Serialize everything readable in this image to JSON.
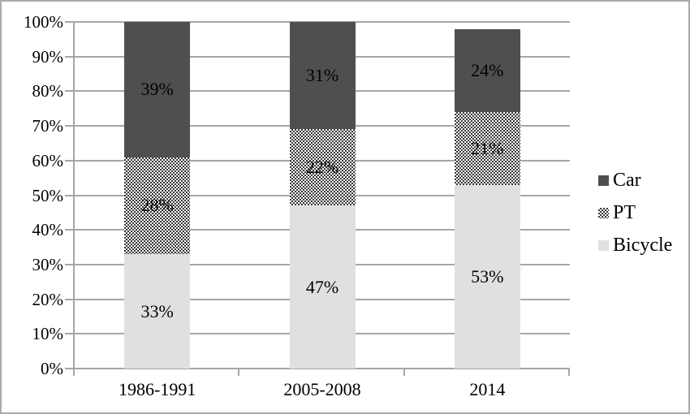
{
  "figure": {
    "background": "#ffffff",
    "border_color": "#aaaaaa"
  },
  "chart_data": {
    "type": "bar",
    "variant": "stacked-vertical",
    "title": "",
    "xlabel": "",
    "ylabel": "",
    "categories": [
      "1986-1991",
      "2005-2008",
      "2014"
    ],
    "series": [
      {
        "name": "Bicycle",
        "values": [
          33,
          47,
          53
        ],
        "fill": "light",
        "color": "#e0e0e0"
      },
      {
        "name": "PT",
        "values": [
          28,
          22,
          21
        ],
        "fill": "dots",
        "color": "#383838"
      },
      {
        "name": "Car",
        "values": [
          39,
          31,
          24
        ],
        "fill": "dark",
        "color": "#4f4f4f"
      }
    ],
    "data_labels": {
      "Bicycle": [
        "33%",
        "47%",
        "53%"
      ],
      "PT": [
        "28%",
        "22%",
        "21%"
      ],
      "Car": [
        "39%",
        "31%",
        "24%"
      ]
    },
    "y_axis": {
      "min": 0,
      "max": 100,
      "tick_labels": [
        "0%",
        "10%",
        "20%",
        "30%",
        "40%",
        "50%",
        "60%",
        "70%",
        "80%",
        "90%",
        "100%"
      ],
      "grid": true,
      "gridline_color": "#a6a6a6"
    },
    "legend": {
      "position": "right",
      "items": [
        {
          "label": "Car",
          "swatch": "dark"
        },
        {
          "label": "PT",
          "swatch": "dots"
        },
        {
          "label": "Bicycle",
          "swatch": "light"
        }
      ]
    }
  }
}
